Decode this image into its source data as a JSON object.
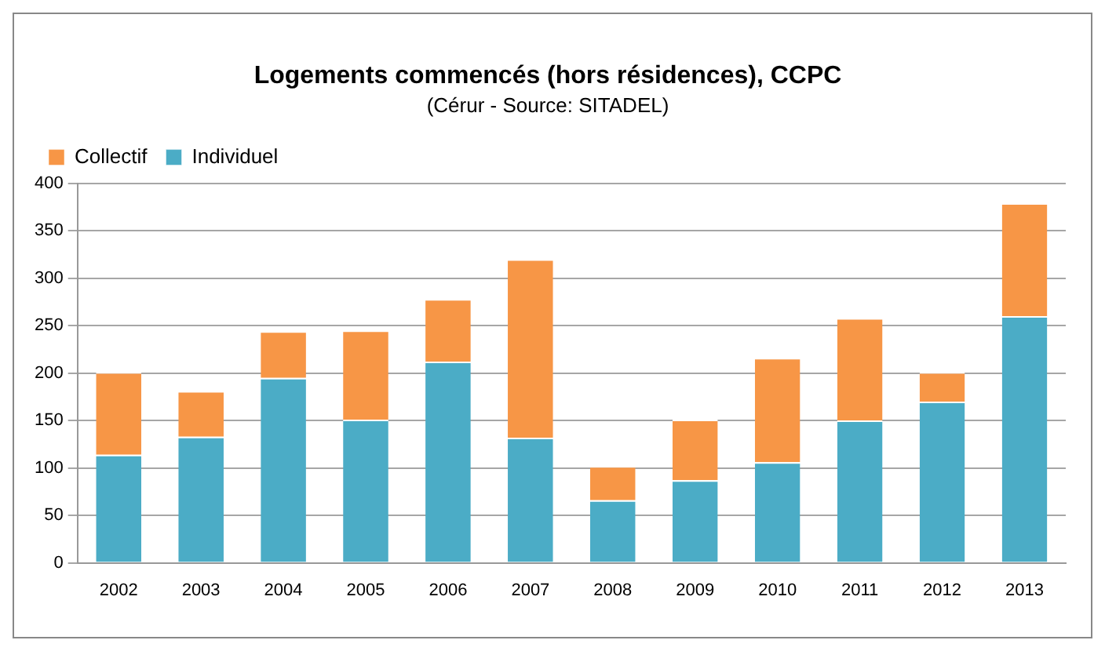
{
  "chart_data": {
    "type": "bar",
    "title": "Logements commencés (hors résidences), CCPC",
    "subtitle": "(Cérur - Source: SITADEL)",
    "categories": [
      "2002",
      "2003",
      "2004",
      "2005",
      "2006",
      "2007",
      "2008",
      "2009",
      "2010",
      "2011",
      "2012",
      "2013"
    ],
    "stacked": true,
    "series": [
      {
        "name": "Individuel",
        "color": "#4bacc6",
        "values": [
          114,
          133,
          195,
          151,
          212,
          132,
          66,
          87,
          106,
          150,
          170,
          260
        ]
      },
      {
        "name": "Collectif",
        "color": "#f79646",
        "values": [
          87,
          48,
          49,
          94,
          66,
          188,
          36,
          64,
          110,
          108,
          31,
          119
        ]
      }
    ],
    "ylim": [
      0,
      400
    ],
    "yticks": [
      0,
      50,
      100,
      150,
      200,
      250,
      300,
      350,
      400
    ],
    "grid": "y",
    "legend": "top left"
  }
}
